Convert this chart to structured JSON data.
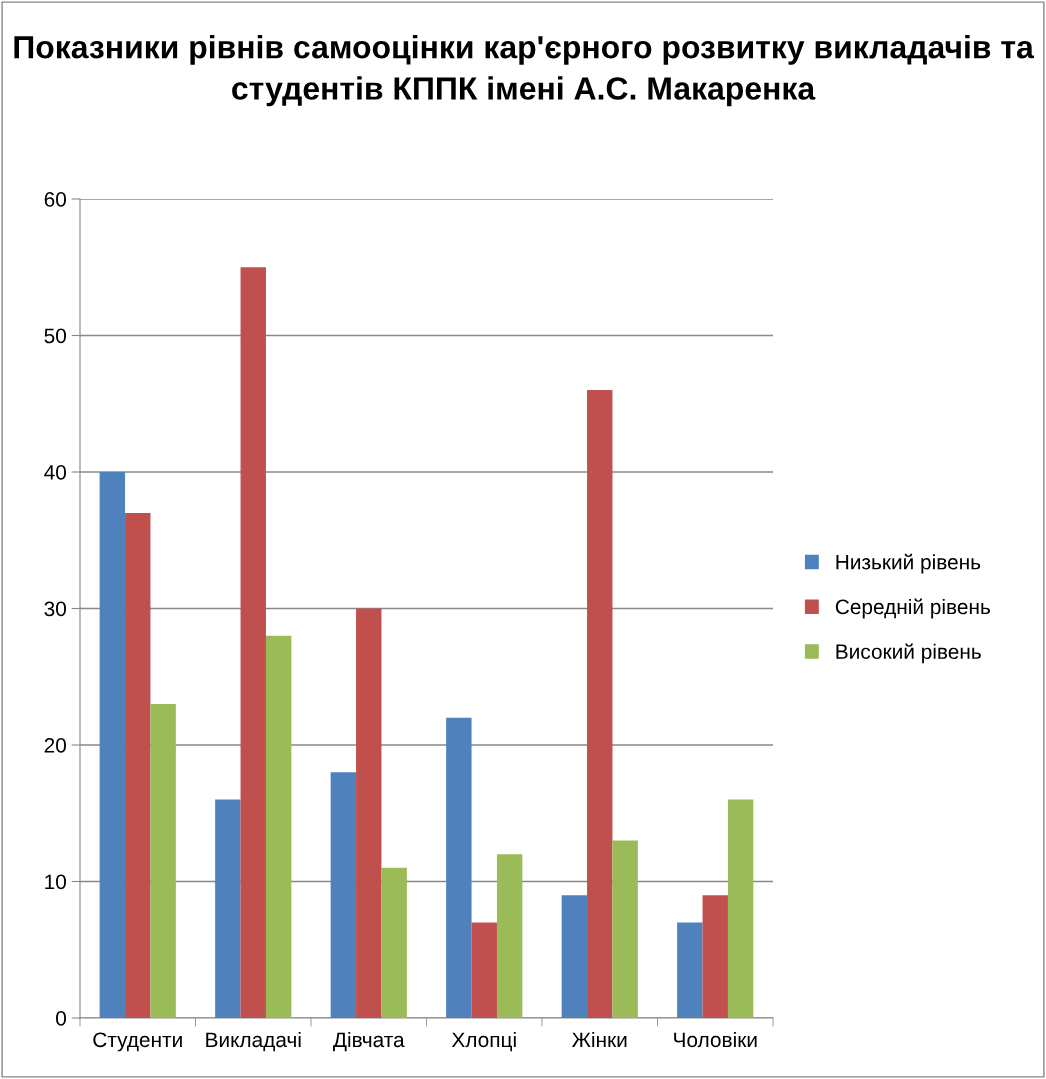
{
  "chart_data": {
    "type": "bar",
    "title": "Показники рівнів самооцінки кар'єрного розвитку викладачів та студентів КППК імені А.С. Макаренка",
    "categories": [
      "Студенти",
      "Викладачі",
      "Дівчата",
      "Хлопці",
      "Жінки",
      "Чоловіки"
    ],
    "series": [
      {
        "name": "Низький рівень",
        "color": "#4f81bd",
        "values": [
          40,
          16,
          18,
          22,
          9,
          7
        ]
      },
      {
        "name": "Середній рівень",
        "color": "#c0504d",
        "values": [
          37,
          55,
          30,
          7,
          46,
          9
        ]
      },
      {
        "name": "Високий рівень",
        "color": "#9bbb59",
        "values": [
          23,
          28,
          11,
          12,
          13,
          16
        ]
      }
    ],
    "ylim": [
      0,
      60
    ],
    "yticks": [
      0,
      10,
      20,
      30,
      40,
      50,
      60
    ],
    "grid": "y",
    "legend": "right"
  }
}
